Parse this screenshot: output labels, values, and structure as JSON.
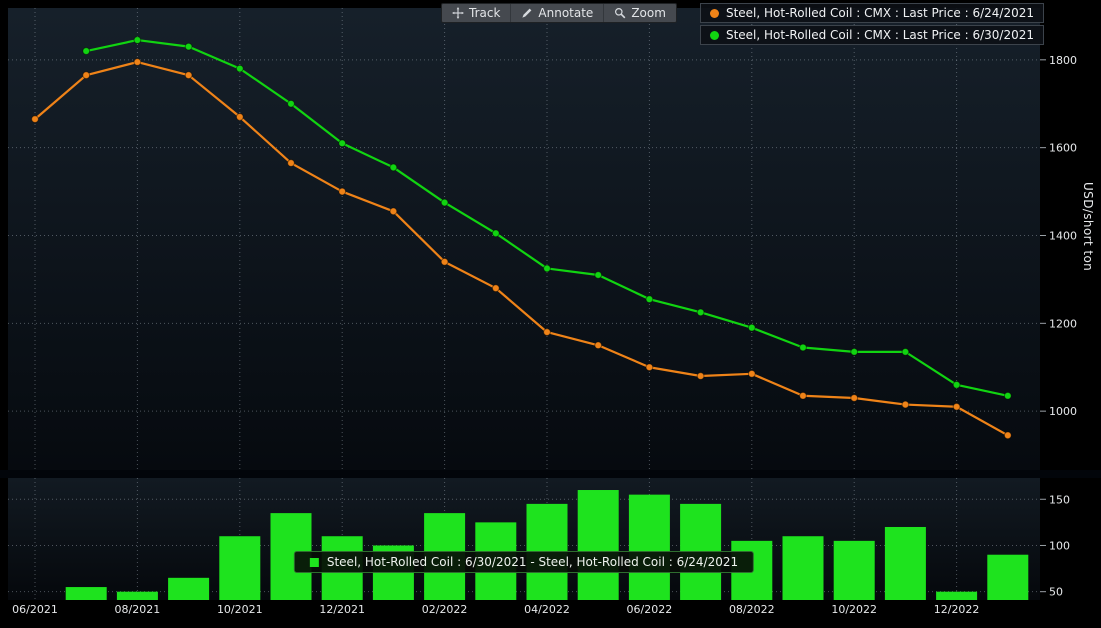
{
  "toolbar": {
    "track_label": "Track",
    "annotate_label": "Annotate",
    "zoom_label": "Zoom"
  },
  "legend_main": [
    {
      "label": "Steel, Hot-Rolled Coil : CMX : Last Price : 6/24/2021",
      "color": "#ef8318"
    },
    {
      "label": "Steel, Hot-Rolled Coil : CMX : Last Price : 6/30/2021",
      "color": "#11d411"
    }
  ],
  "legend_bottom": {
    "label": "Steel, Hot-Rolled Coil : 6/30/2021 - Steel, Hot-Rolled Coil : 6/24/2021",
    "color": "#1ee31e"
  },
  "y_axis_label": "USD/short ton",
  "chart_data": [
    {
      "type": "line",
      "title": "Steel Hot-Rolled Coil CMX futures curves",
      "ylabel": "USD/short ton",
      "months": [
        "06/2021",
        "07/2021",
        "08/2021",
        "09/2021",
        "10/2021",
        "11/2021",
        "12/2021",
        "01/2022",
        "02/2022",
        "03/2022",
        "04/2022",
        "05/2022",
        "06/2022",
        "07/2022",
        "08/2022",
        "09/2022",
        "10/2022",
        "11/2022",
        "12/2022",
        "01/2023"
      ],
      "x_tick_labels": [
        "06/2021",
        "08/2021",
        "10/2021",
        "12/2021",
        "02/2022",
        "04/2022",
        "06/2022",
        "08/2022",
        "10/2022",
        "12/2022"
      ],
      "y_ticks": [
        1000,
        1200,
        1400,
        1600,
        1800
      ],
      "ylim": [
        866,
        1918
      ],
      "grid": true,
      "legend_position": "top-right",
      "series": [
        {
          "name": "Steel, Hot-Rolled Coil : CMX : Last Price : 6/24/2021",
          "color": "#ef8318",
          "start_index": 0,
          "values": [
            1665,
            1765,
            1795,
            1765,
            1670,
            1565,
            1500,
            1455,
            1340,
            1280,
            1180,
            1150,
            1100,
            1080,
            1085,
            1035,
            1030,
            1015,
            1010,
            945
          ]
        },
        {
          "name": "Steel, Hot-Rolled Coil : CMX : Last Price : 6/30/2021",
          "color": "#11d411",
          "start_index": 1,
          "values": [
            1820,
            1845,
            1830,
            1780,
            1700,
            1610,
            1555,
            1475,
            1405,
            1325,
            1310,
            1255,
            1225,
            1190,
            1145,
            1135,
            1135,
            1060,
            1035
          ]
        }
      ]
    },
    {
      "type": "bar",
      "title": "Spread 6/30/2021 minus 6/24/2021",
      "name": "Steel, Hot-Rolled Coil : 6/30/2021 - Steel, Hot-Rolled Coil : 6/24/2021",
      "color": "#1ee31e",
      "start_index": 1,
      "y_ticks": [
        50,
        100,
        150
      ],
      "ylim": [
        41,
        173
      ],
      "values": [
        55,
        50,
        65,
        110,
        135,
        110,
        100,
        135,
        125,
        145,
        160,
        155,
        145,
        105,
        110,
        105,
        120,
        50,
        90
      ]
    }
  ]
}
